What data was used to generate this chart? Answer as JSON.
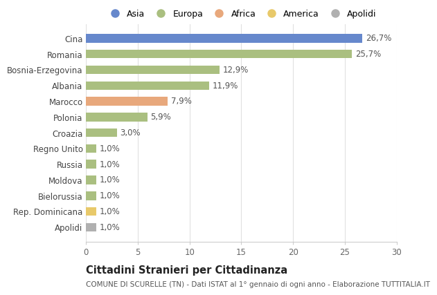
{
  "categories": [
    "Cina",
    "Romania",
    "Bosnia-Erzegovina",
    "Albania",
    "Marocco",
    "Polonia",
    "Croazia",
    "Regno Unito",
    "Russia",
    "Moldova",
    "Bielorussia",
    "Rep. Dominicana",
    "Apolidi"
  ],
  "values": [
    26.7,
    25.7,
    12.9,
    11.9,
    7.9,
    5.9,
    3.0,
    1.0,
    1.0,
    1.0,
    1.0,
    1.0,
    1.0
  ],
  "labels": [
    "26,7%",
    "25,7%",
    "12,9%",
    "11,9%",
    "7,9%",
    "5,9%",
    "3,0%",
    "1,0%",
    "1,0%",
    "1,0%",
    "1,0%",
    "1,0%",
    "1,0%"
  ],
  "colors": [
    "#6688cc",
    "#aabf80",
    "#aabf80",
    "#aabf80",
    "#e8a87c",
    "#aabf80",
    "#aabf80",
    "#aabf80",
    "#aabf80",
    "#aabf80",
    "#aabf80",
    "#e8c96a",
    "#b0b0b0"
  ],
  "legend_labels": [
    "Asia",
    "Europa",
    "Africa",
    "America",
    "Apolidi"
  ],
  "legend_colors": [
    "#6688cc",
    "#aabf80",
    "#e8a87c",
    "#e8c96a",
    "#b0b0b0"
  ],
  "title": "Cittadini Stranieri per Cittadinanza",
  "subtitle": "COMUNE DI SCURELLE (TN) - Dati ISTAT al 1° gennaio di ogni anno - Elaborazione TUTTITALIA.IT",
  "xlim": [
    0,
    30
  ],
  "xticks": [
    0,
    5,
    10,
    15,
    20,
    25,
    30
  ],
  "background_color": "#ffffff",
  "bar_height": 0.55,
  "label_fontsize": 8.5,
  "tick_fontsize": 8.5,
  "title_fontsize": 10.5,
  "subtitle_fontsize": 7.5
}
